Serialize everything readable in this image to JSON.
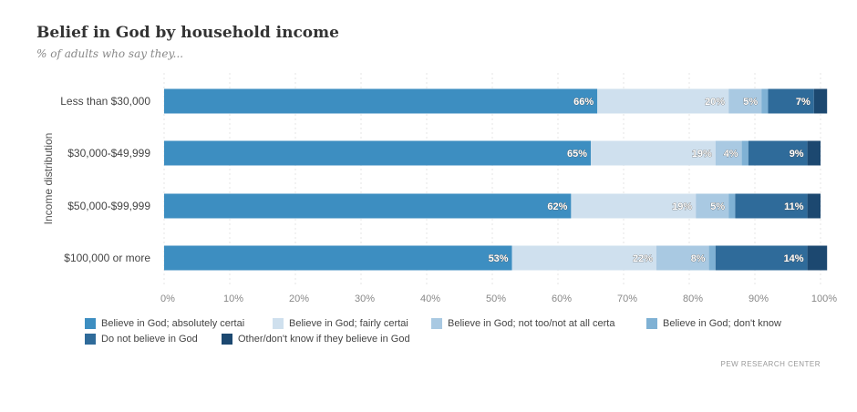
{
  "title": "Belief in God by household income",
  "subtitle": "% of adults who say they...",
  "source": "PEW RESEARCH CENTER",
  "chart_data": {
    "type": "bar",
    "orientation": "horizontal",
    "stacked": true,
    "title": "Belief in God by household income",
    "subtitle": "% of adults who say they...",
    "ylabel": "Income distribution",
    "xlabel": "",
    "xlim": [
      0,
      100
    ],
    "xticks": [
      "0%",
      "10%",
      "20%",
      "30%",
      "40%",
      "50%",
      "60%",
      "70%",
      "80%",
      "90%",
      "100%"
    ],
    "grid": true,
    "legend_position": "bottom",
    "categories": [
      "Less than $30,000",
      "$30,000-$49,999",
      "$50,000-$99,999",
      "$100,000 or more"
    ],
    "series": [
      {
        "name": "Believe in God; absolutely certain",
        "legend_label": "Believe in God; absolutely certai",
        "color": "#3d8ec1",
        "values": [
          66,
          65,
          62,
          53
        ],
        "labels": [
          "66%",
          "65%",
          "62%",
          "53%"
        ]
      },
      {
        "name": "Believe in God; fairly certain",
        "legend_label": "Believe in God; fairly certai",
        "color": "#cfe0ee",
        "values": [
          20,
          19,
          19,
          22
        ],
        "labels": [
          "20%",
          "19%",
          "19%",
          "22%"
        ]
      },
      {
        "name": "Believe in God; not too/not at all certain",
        "legend_label": "Believe in God; not too/not at all certa",
        "color": "#a9c9e2",
        "values": [
          5,
          4,
          5,
          8
        ],
        "labels": [
          "5%",
          "4%",
          "5%",
          "8%"
        ]
      },
      {
        "name": "Believe in God; don't know",
        "legend_label": "Believe in God; don't know",
        "color": "#7fb1d4",
        "values": [
          1,
          1,
          1,
          1
        ],
        "labels": [
          "",
          "",
          "",
          ""
        ]
      },
      {
        "name": "Do not believe in God",
        "legend_label": "Do not believe in God",
        "color": "#2f6b9a",
        "values": [
          7,
          9,
          11,
          14
        ],
        "labels": [
          "7%",
          "9%",
          "11%",
          "14%"
        ]
      },
      {
        "name": "Other/don't know if they believe in God",
        "legend_label": "Other/don't know if they believe in God",
        "color": "#1c4870",
        "values": [
          2,
          2,
          2,
          3
        ],
        "labels": [
          "",
          "",
          "",
          ""
        ]
      }
    ]
  }
}
